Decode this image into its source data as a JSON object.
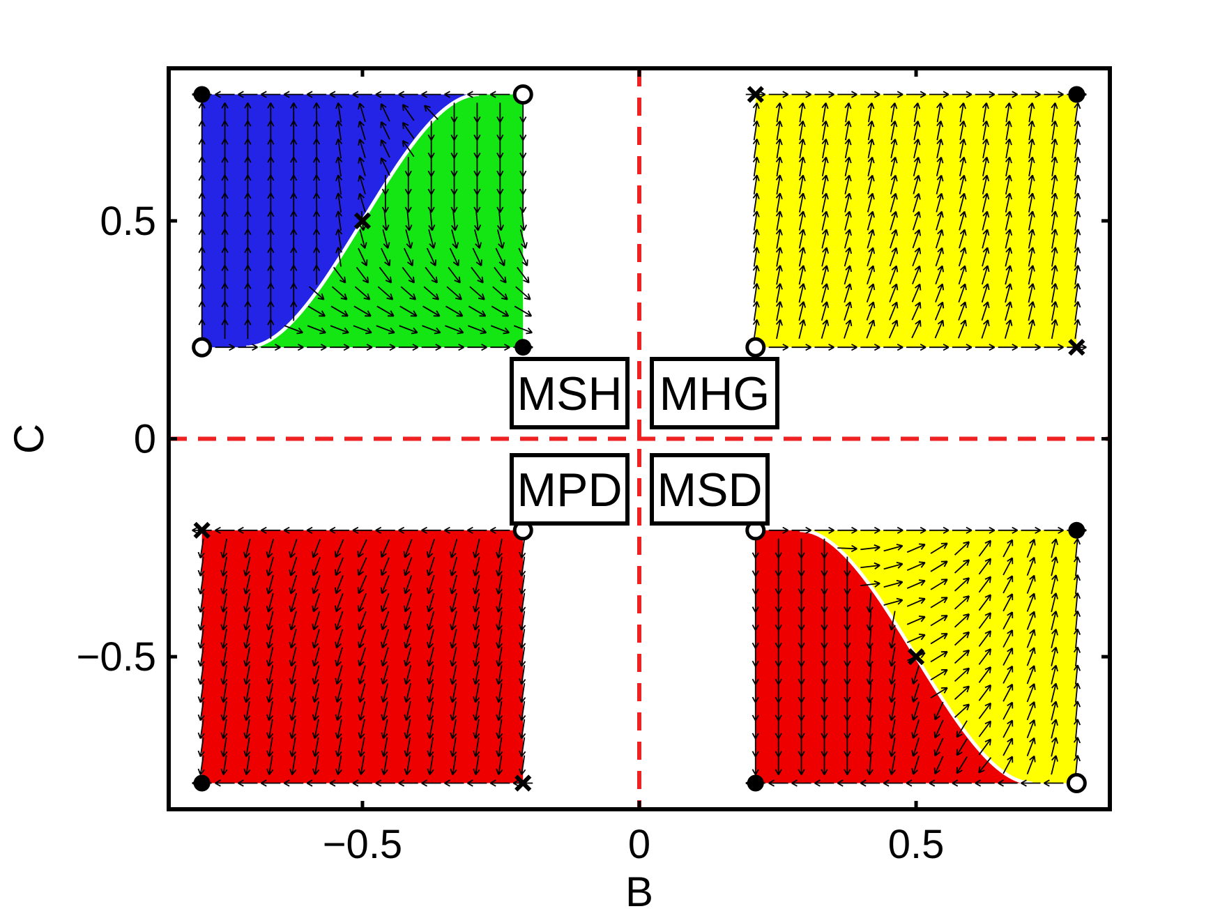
{
  "chart_data": {
    "type": "phase-portrait",
    "title": "",
    "xlabel": "B",
    "ylabel": "C",
    "xlim": [
      -0.85,
      0.85
    ],
    "ylim": [
      -0.85,
      0.85
    ],
    "xticks": [
      {
        "value": -0.5,
        "label": "−0.5"
      },
      {
        "value": 0,
        "label": "0"
      },
      {
        "value": 0.5,
        "label": "0.5"
      }
    ],
    "yticks": [
      {
        "value": -0.5,
        "label": "−0.5"
      },
      {
        "value": 0,
        "label": "0"
      },
      {
        "value": 0.5,
        "label": "0.5"
      }
    ],
    "reference_lines": {
      "x": 0,
      "y": 0,
      "color": "#ee2222",
      "style": "dashed"
    },
    "region_labels": [
      {
        "text": "MSH",
        "quadrant": "upper-left"
      },
      {
        "text": "MHG",
        "quadrant": "upper-right"
      },
      {
        "text": "MPD",
        "quadrant": "lower-left"
      },
      {
        "text": "MSD",
        "quadrant": "lower-right"
      }
    ],
    "colors": {
      "blue": "#2424e6",
      "green": "#14e614",
      "yellow": "#ffff00",
      "red": "#ee0000",
      "separatrix": "#ffffff",
      "axis": "#000000"
    },
    "grid_steps": 14,
    "panels": [
      {
        "name": "upper-left",
        "b_range": [
          -0.79,
          -0.21
        ],
        "c_range": [
          0.21,
          0.79
        ],
        "fill": "split",
        "separatrix": {
          "from": [
            -0.71,
            0.21
          ],
          "mid": [
            -0.5,
            0.5
          ],
          "to": [
            -0.29,
            0.79
          ]
        },
        "fill_left": "blue",
        "fill_right": "green",
        "flow_left": [
          [
            0,
            0.2
          ],
          [
            -0.3,
            1
          ],
          [
            -0.9,
            0.4
          ]
        ],
        "flow_right": [
          [
            0.8,
            0.2
          ],
          [
            0.35,
            -1
          ],
          [
            0.0,
            -1
          ]
        ],
        "markers": [
          {
            "b": -0.79,
            "c": 0.79,
            "kind": "filled"
          },
          {
            "b": -0.21,
            "c": 0.79,
            "kind": "open"
          },
          {
            "b": -0.79,
            "c": 0.21,
            "kind": "open"
          },
          {
            "b": -0.21,
            "c": 0.21,
            "kind": "filled"
          },
          {
            "b": -0.5,
            "c": 0.5,
            "kind": "cross"
          }
        ]
      },
      {
        "name": "upper-right",
        "b_range": [
          0.21,
          0.79
        ],
        "c_range": [
          0.21,
          0.79
        ],
        "fill": "yellow",
        "flow": [
          [
            0.15,
            1
          ],
          [
            0.35,
            1
          ],
          [
            1,
            0
          ]
        ],
        "markers": [
          {
            "b": 0.21,
            "c": 0.79,
            "kind": "cross"
          },
          {
            "b": 0.79,
            "c": 0.79,
            "kind": "filled"
          },
          {
            "b": 0.21,
            "c": 0.21,
            "kind": "open"
          },
          {
            "b": 0.79,
            "c": 0.21,
            "kind": "cross"
          }
        ]
      },
      {
        "name": "lower-left",
        "b_range": [
          -0.79,
          -0.21
        ],
        "c_range": [
          -0.79,
          -0.21
        ],
        "fill": "red",
        "flow": [
          [
            -0.15,
            -1
          ],
          [
            -0.35,
            -1
          ],
          [
            -1,
            0
          ]
        ],
        "markers": [
          {
            "b": -0.79,
            "c": -0.21,
            "kind": "cross"
          },
          {
            "b": -0.21,
            "c": -0.21,
            "kind": "open"
          },
          {
            "b": -0.79,
            "c": -0.79,
            "kind": "filled"
          },
          {
            "b": -0.21,
            "c": -0.79,
            "kind": "cross"
          }
        ]
      },
      {
        "name": "lower-right",
        "b_range": [
          0.21,
          0.79
        ],
        "c_range": [
          -0.79,
          -0.21
        ],
        "fill": "split",
        "separatrix": {
          "from": [
            0.29,
            -0.21
          ],
          "mid": [
            0.5,
            -0.5
          ],
          "to": [
            0.71,
            -0.79
          ]
        },
        "fill_left": "red",
        "fill_right": "yellow",
        "flow_left": [
          [
            0,
            -1
          ],
          [
            -0.35,
            -1
          ],
          [
            -0.9,
            -0.2
          ]
        ],
        "flow_right": [
          [
            0.8,
            0
          ],
          [
            0.4,
            1
          ],
          [
            0,
            1
          ]
        ],
        "markers": [
          {
            "b": 0.21,
            "c": -0.21,
            "kind": "open"
          },
          {
            "b": 0.79,
            "c": -0.21,
            "kind": "filled"
          },
          {
            "b": 0.5,
            "c": -0.5,
            "kind": "cross"
          },
          {
            "b": 0.21,
            "c": -0.79,
            "kind": "filled"
          },
          {
            "b": 0.79,
            "c": -0.79,
            "kind": "open"
          }
        ]
      }
    ]
  }
}
